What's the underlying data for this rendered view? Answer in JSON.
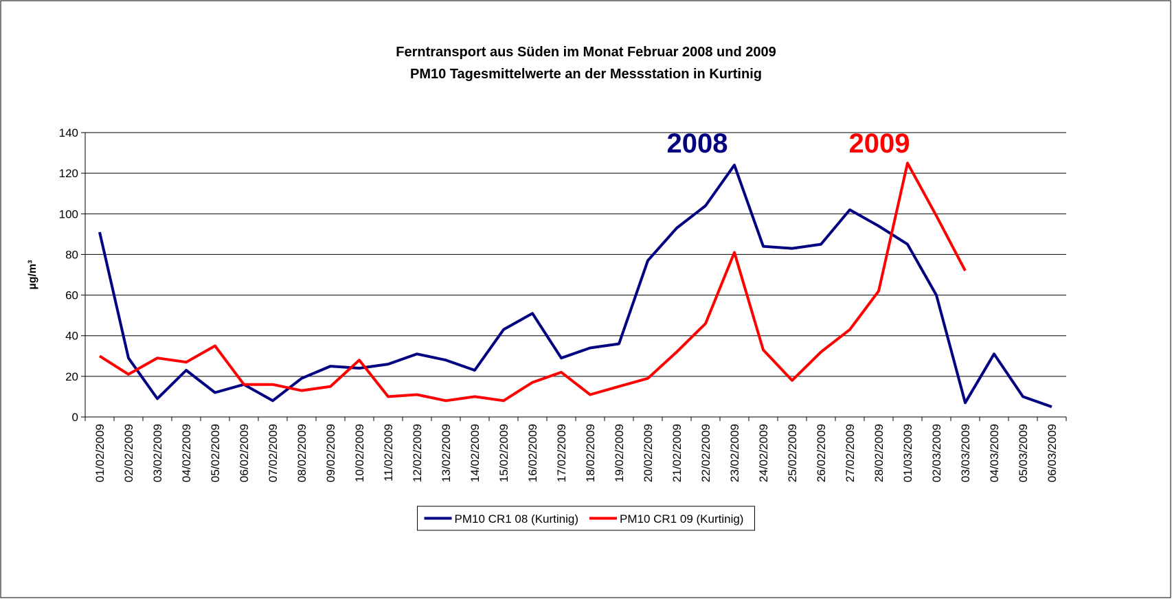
{
  "chart_data": {
    "type": "line",
    "title": "Ferntransport aus Süden im Monat Februar 2008 und 2009",
    "subtitle": "PM10 Tagesmittelwerte an der Messstation in Kurtinig",
    "y_label": "µg/m³",
    "categories": [
      "01/02/2009",
      "02/02/2009",
      "03/02/2009",
      "04/02/2009",
      "05/02/2009",
      "06/02/2009",
      "07/02/2009",
      "08/02/2009",
      "09/02/2009",
      "10/02/2009",
      "11/02/2009",
      "12/02/2009",
      "13/02/2009",
      "14/02/2009",
      "15/02/2009",
      "16/02/2009",
      "17/02/2009",
      "18/02/2009",
      "19/02/2009",
      "20/02/2009",
      "21/02/2009",
      "22/02/2009",
      "23/02/2009",
      "24/02/2009",
      "25/02/2009",
      "26/02/2009",
      "27/02/2009",
      "28/02/2009",
      "01/03/2009",
      "02/03/2009",
      "03/03/2009",
      "04/03/2009",
      "05/03/2009",
      "06/03/2009"
    ],
    "series": [
      {
        "name": "PM10 CR1 08 (Kurtinig)",
        "color": "#000080",
        "values": [
          91,
          29,
          9,
          23,
          12,
          16,
          8,
          19,
          25,
          24,
          26,
          31,
          28,
          23,
          43,
          51,
          29,
          34,
          36,
          77,
          93,
          104,
          124,
          84,
          83,
          85,
          102,
          94,
          85,
          60,
          7,
          31,
          10,
          5
        ]
      },
      {
        "name": "PM10 CR1 09 (Kurtinig)",
        "color": "#ff0000",
        "values": [
          30,
          21,
          29,
          27,
          35,
          16,
          16,
          13,
          15,
          28,
          10,
          11,
          8,
          10,
          8,
          17,
          22,
          11,
          15,
          19,
          32,
          46,
          81,
          33,
          18,
          32,
          43,
          62,
          125,
          99,
          72,
          null,
          null,
          null
        ]
      }
    ],
    "annotations": [
      {
        "text": "2008",
        "color": "#000080"
      },
      {
        "text": "2009",
        "color": "#ff0000"
      }
    ],
    "ylim": [
      0,
      140
    ],
    "yticks": [
      0,
      20,
      40,
      60,
      80,
      100,
      120,
      140
    ],
    "grid": true,
    "legend": "bottom"
  }
}
